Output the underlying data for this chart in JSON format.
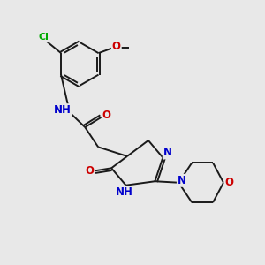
{
  "bg_color": "#e8e8e8",
  "bond_color": "#1a1a1a",
  "bond_width": 1.4,
  "atom_colors": {
    "N": "#0000cc",
    "O": "#cc0000",
    "Cl": "#00aa00",
    "C": "#1a1a1a"
  },
  "font_size": 8.5,
  "fig_width": 3.0,
  "fig_height": 3.0,
  "dpi": 100
}
